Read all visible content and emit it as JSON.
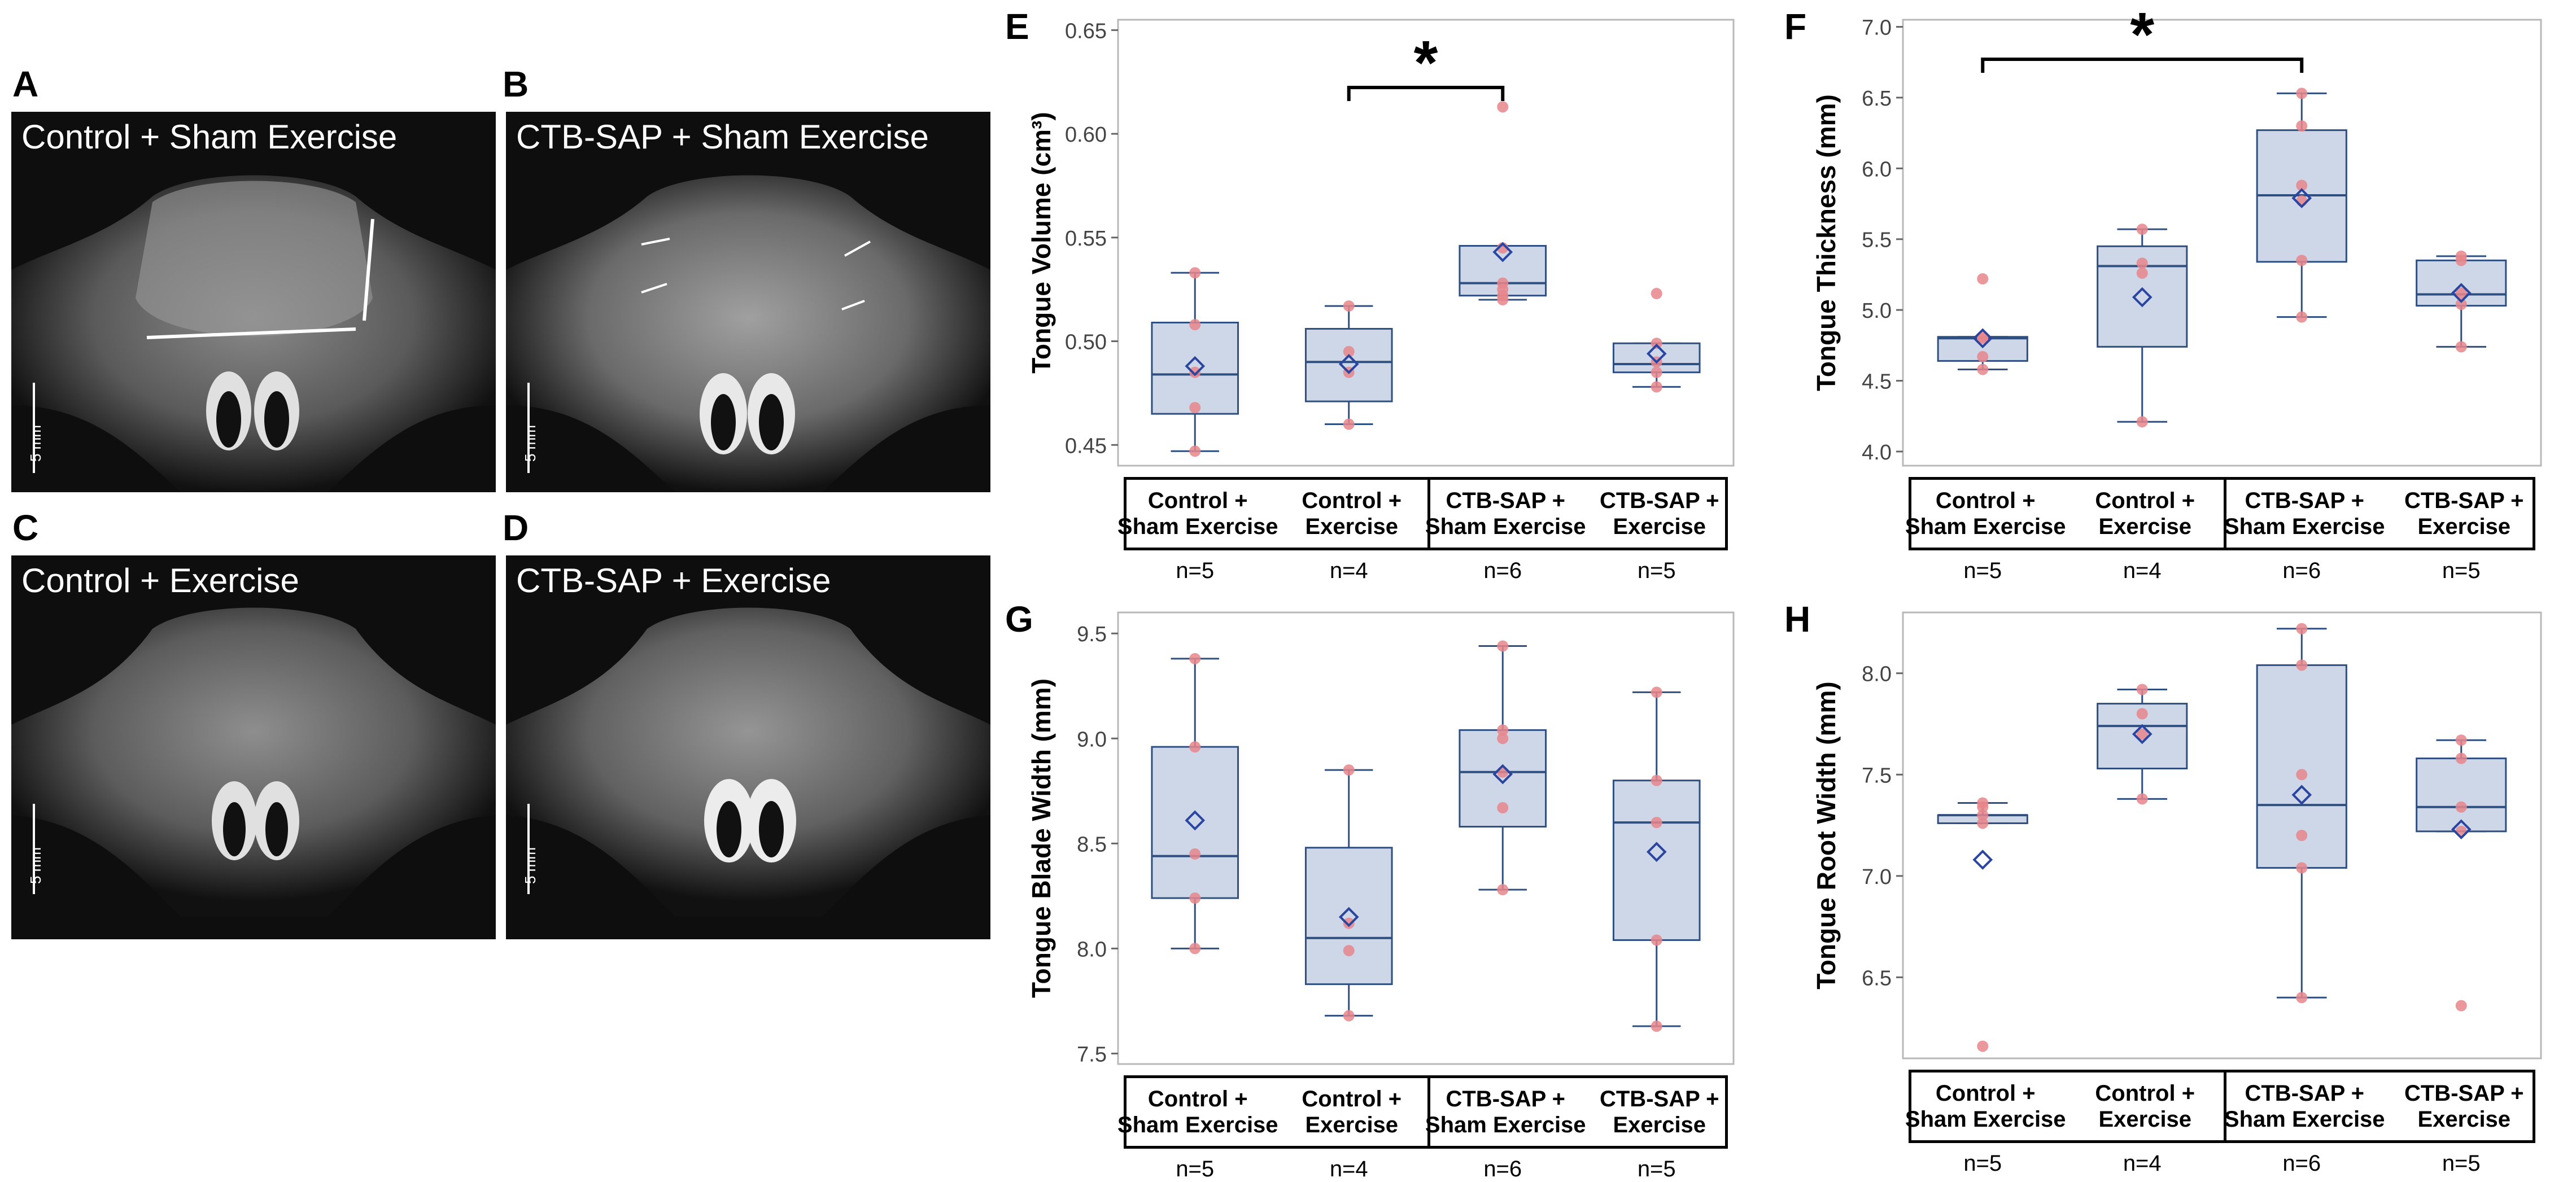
{
  "panels": {
    "A": {
      "letter": "A",
      "caption": "Control + Sham Exercise",
      "scale": "5 mm"
    },
    "B": {
      "letter": "B",
      "caption": "CTB-SAP + Sham Exercise",
      "scale": "5 mm"
    },
    "C": {
      "letter": "C",
      "caption": "Control + Exercise",
      "scale": "5 mm"
    },
    "D": {
      "letter": "D",
      "caption": "CTB-SAP + Exercise",
      "scale": "5 mm"
    }
  },
  "groups": [
    {
      "line1": "Control +",
      "line2": "Sham Exercise",
      "n": "n=5"
    },
    {
      "line1": "Control +",
      "line2": "Exercise",
      "n": "n=4"
    },
    {
      "line1": "CTB-SAP +",
      "line2": "Sham Exercise",
      "n": "n=6"
    },
    {
      "line1": "CTB-SAP +",
      "line2": "Exercise",
      "n": "n=5"
    }
  ],
  "colors": {
    "box_fill": "#cdd7e8",
    "box_stroke": "#2f4f80",
    "median": "#2f4f80",
    "mean_marker": "#2a45a0",
    "points": "#e8868c"
  },
  "chart_data": [
    {
      "panel": "E",
      "type": "box",
      "ylabel": "Tongue Volume (cm³)",
      "ylim": [
        0.44,
        0.655
      ],
      "yticks": [
        "0.45",
        "0.50",
        "0.55",
        "0.60",
        "0.65"
      ],
      "significance": {
        "from": 1,
        "to": 2,
        "label": "*"
      },
      "boxes": [
        {
          "min": 0.447,
          "q1": 0.465,
          "median": 0.484,
          "q3": 0.509,
          "max": 0.533,
          "mean": 0.488,
          "points": [
            0.447,
            0.468,
            0.485,
            0.508,
            0.533
          ]
        },
        {
          "min": 0.46,
          "q1": 0.471,
          "median": 0.49,
          "q3": 0.506,
          "max": 0.517,
          "mean": 0.489,
          "points": [
            0.46,
            0.485,
            0.495,
            0.517
          ]
        },
        {
          "min": 0.52,
          "q1": 0.522,
          "median": 0.528,
          "q3": 0.546,
          "max": 0.546,
          "mean": 0.543,
          "points": [
            0.52,
            0.522,
            0.525,
            0.528,
            0.545,
            0.613
          ]
        },
        {
          "min": 0.478,
          "q1": 0.485,
          "median": 0.489,
          "q3": 0.499,
          "max": 0.499,
          "mean": 0.494,
          "points": [
            0.478,
            0.485,
            0.49,
            0.499,
            0.523
          ]
        }
      ]
    },
    {
      "panel": "F",
      "type": "box",
      "ylabel": "Tongue Thickness (mm)",
      "ylim": [
        3.9,
        7.05
      ],
      "yticks": [
        "4.0",
        "4.5",
        "5.0",
        "5.5",
        "6.0",
        "6.5",
        "7.0"
      ],
      "significance": {
        "from": 0,
        "to": 2,
        "label": "*"
      },
      "boxes": [
        {
          "min": 4.58,
          "q1": 4.64,
          "median": 4.8,
          "q3": 4.81,
          "max": 4.81,
          "mean": 4.8,
          "points": [
            4.58,
            4.67,
            4.8,
            4.81,
            5.22
          ]
        },
        {
          "min": 4.21,
          "q1": 4.74,
          "median": 5.31,
          "q3": 5.45,
          "max": 5.57,
          "mean": 5.09,
          "points": [
            4.21,
            5.26,
            5.33,
            5.57
          ]
        },
        {
          "min": 4.95,
          "q1": 5.34,
          "median": 5.81,
          "q3": 6.27,
          "max": 6.53,
          "mean": 5.79,
          "points": [
            4.95,
            5.35,
            5.77,
            5.88,
            6.3,
            6.53
          ]
        },
        {
          "min": 4.74,
          "q1": 5.03,
          "median": 5.11,
          "q3": 5.35,
          "max": 5.38,
          "mean": 5.12,
          "points": [
            4.74,
            5.04,
            5.12,
            5.35,
            5.38
          ]
        }
      ]
    },
    {
      "panel": "G",
      "type": "box",
      "ylabel": "Tongue Blade Width (mm)",
      "ylim": [
        7.45,
        9.6
      ],
      "yticks": [
        "7.5",
        "8.0",
        "8.5",
        "9.0",
        "9.5"
      ],
      "significance": null,
      "boxes": [
        {
          "min": 8.0,
          "q1": 8.24,
          "median": 8.44,
          "q3": 8.96,
          "max": 9.38,
          "mean": 8.61,
          "points": [
            8.0,
            8.24,
            8.45,
            8.96,
            9.38
          ]
        },
        {
          "min": 7.68,
          "q1": 7.83,
          "median": 8.05,
          "q3": 8.48,
          "max": 8.85,
          "mean": 8.15,
          "points": [
            7.68,
            7.99,
            8.12,
            8.85
          ]
        },
        {
          "min": 8.28,
          "q1": 8.58,
          "median": 8.84,
          "q3": 9.04,
          "max": 9.44,
          "mean": 8.83,
          "points": [
            8.28,
            8.67,
            8.84,
            9.0,
            9.04,
            9.44
          ]
        },
        {
          "min": 7.63,
          "q1": 8.04,
          "median": 8.6,
          "q3": 8.8,
          "max": 9.22,
          "mean": 8.46,
          "points": [
            7.63,
            8.04,
            8.6,
            8.8,
            9.22
          ]
        }
      ]
    },
    {
      "panel": "H",
      "type": "box",
      "ylabel": "Tongue Root Width (mm)",
      "ylim": [
        6.1,
        8.3
      ],
      "yticks": [
        "6.5",
        "7.0",
        "7.5",
        "8.0"
      ],
      "significance": null,
      "boxes": [
        {
          "min": 7.26,
          "q1": 7.26,
          "median": 7.3,
          "q3": 7.3,
          "max": 7.36,
          "mean": 7.08,
          "points": [
            6.16,
            7.26,
            7.3,
            7.34,
            7.36
          ]
        },
        {
          "min": 7.38,
          "q1": 7.53,
          "median": 7.74,
          "q3": 7.85,
          "max": 7.92,
          "mean": 7.7,
          "points": [
            7.38,
            7.7,
            7.8,
            7.92
          ]
        },
        {
          "min": 6.4,
          "q1": 7.04,
          "median": 7.35,
          "q3": 8.04,
          "max": 8.22,
          "mean": 7.4,
          "points": [
            6.4,
            7.04,
            7.2,
            7.5,
            8.04,
            8.22
          ]
        },
        {
          "min": 7.22,
          "q1": 7.22,
          "median": 7.34,
          "q3": 7.58,
          "max": 7.67,
          "mean": 7.23,
          "points": [
            6.36,
            7.22,
            7.34,
            7.58,
            7.67
          ]
        }
      ]
    }
  ]
}
